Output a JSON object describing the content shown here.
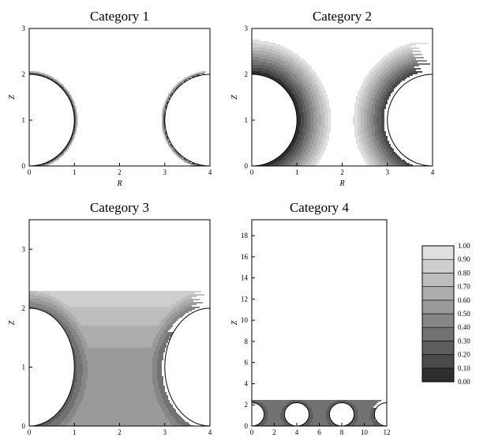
{
  "chart_data": [
    {
      "type": "contour",
      "title": "Category 1",
      "xlabel": "R",
      "ylabel": "Z",
      "xlim": [
        0,
        4
      ],
      "ylim": [
        0,
        3
      ],
      "xticks": [
        "0",
        "1",
        "2",
        "3",
        "4"
      ],
      "yticks": [
        "0",
        "1",
        "2",
        "3"
      ],
      "obstacles": [
        {
          "cx": 0,
          "cz": 1,
          "r": 1
        },
        {
          "cx": 4,
          "cz": 1,
          "r": 1
        }
      ]
    },
    {
      "type": "contour",
      "title": "Category 2",
      "xlabel": "R",
      "ylabel": "Z",
      "xlim": [
        0,
        4
      ],
      "ylim": [
        0,
        3
      ],
      "xticks": [
        "0",
        "1",
        "2",
        "3",
        "4"
      ],
      "yticks": [
        "0",
        "1",
        "2",
        "3"
      ],
      "obstacles": [
        {
          "cx": 0,
          "cz": 1,
          "r": 1
        },
        {
          "cx": 4,
          "cz": 1,
          "r": 1
        }
      ]
    },
    {
      "type": "contour",
      "title": "Category 3",
      "xlabel": "",
      "ylabel": "Z",
      "xlim": [
        0,
        4
      ],
      "ylim": [
        0,
        3.5
      ],
      "xticks": [
        "0",
        "1",
        "2",
        "3",
        "4"
      ],
      "yticks": [
        "0",
        "1",
        "2",
        "3"
      ],
      "obstacles": [
        {
          "cx": 0,
          "cz": 1,
          "r": 1
        },
        {
          "cx": 4,
          "cz": 1,
          "r": 1
        }
      ]
    },
    {
      "type": "contour",
      "title": "Category 4",
      "xlabel": "",
      "ylabel": "Z",
      "xlim": [
        0,
        12
      ],
      "ylim": [
        0,
        19.5
      ],
      "xticks": [
        "0",
        "2",
        "4",
        "6",
        "8",
        "10",
        "12"
      ],
      "yticks": [
        "0",
        "2",
        "4",
        "6",
        "8",
        "10",
        "12",
        "14",
        "16",
        "18"
      ],
      "obstacles": [
        {
          "cx": 0,
          "cz": 1.1,
          "r": 1.1
        },
        {
          "cx": 4,
          "cz": 1.1,
          "r": 1.1
        },
        {
          "cx": 8,
          "cz": 1.1,
          "r": 1.1
        },
        {
          "cx": 12,
          "cz": 1.1,
          "r": 1.1
        }
      ]
    }
  ],
  "colorbar": {
    "levels": [
      "0.00",
      "0.10",
      "0.20",
      "0.30",
      "0.40",
      "0.50",
      "0.60",
      "0.70",
      "0.80",
      "0.90",
      "1.00"
    ],
    "colors": [
      "#2e2e2e",
      "#4a4a4a",
      "#5e5e5e",
      "#727272",
      "#868686",
      "#9a9a9a",
      "#acacac",
      "#bdbdbd",
      "#cecece",
      "#dfdfdf",
      "#ffffff"
    ]
  }
}
